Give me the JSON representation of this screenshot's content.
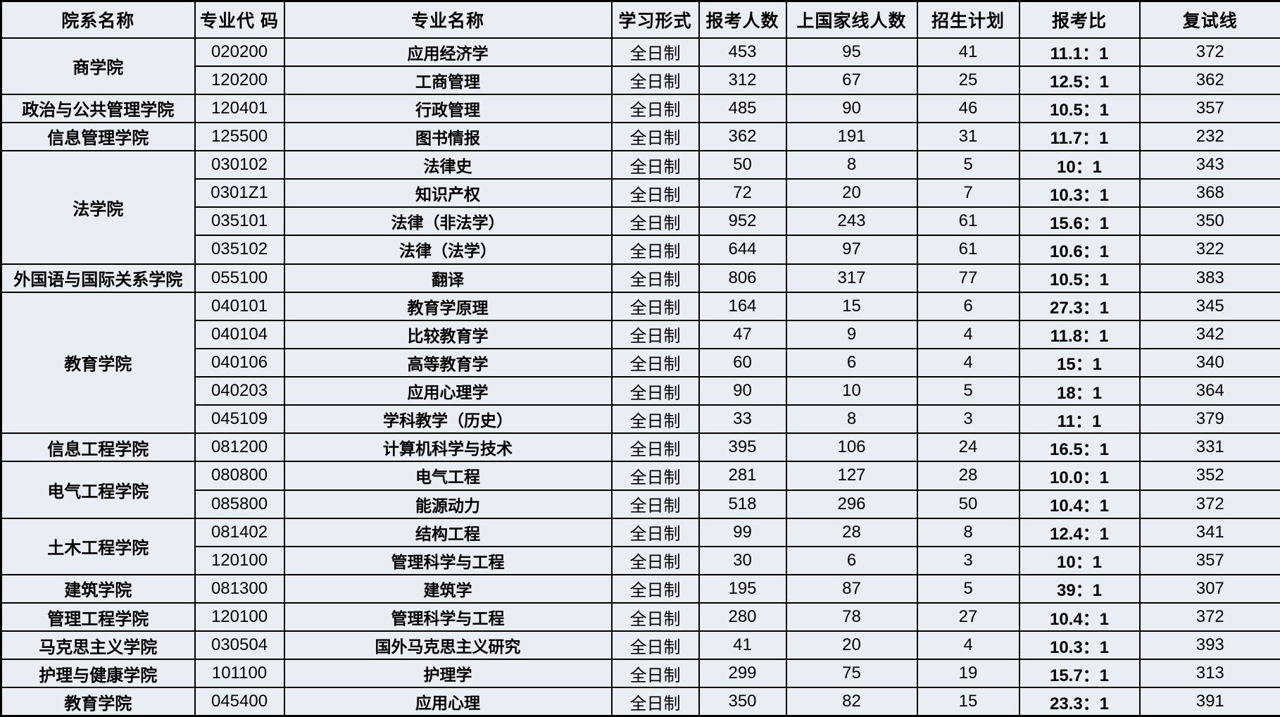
{
  "table": {
    "headers": [
      "院系名称",
      "专业代 码",
      "专业名称",
      "学习形式",
      "报考人数",
      "上国家线人数",
      "招生计划",
      "报考比",
      "复试线"
    ],
    "colors": {
      "cell_background": "#e9edf4",
      "border": "#000000",
      "text": "#000000"
    },
    "groups": [
      {
        "name": "商学院",
        "rows": [
          [
            "020200",
            "应用经济学",
            "全日制",
            "453",
            "95",
            "41",
            "11.1：1",
            "372"
          ],
          [
            "120200",
            "工商管理",
            "全日制",
            "312",
            "67",
            "25",
            "12.5：1",
            "362"
          ]
        ]
      },
      {
        "name": "政治与公共管理学院",
        "rows": [
          [
            "120401",
            "行政管理",
            "全日制",
            "485",
            "90",
            "46",
            "10.5：1",
            "357"
          ]
        ]
      },
      {
        "name": "信息管理学院",
        "rows": [
          [
            "125500",
            "图书情报",
            "全日制",
            "362",
            "191",
            "31",
            "11.7：1",
            "232"
          ]
        ]
      },
      {
        "name": "法学院",
        "rows": [
          [
            "030102",
            "法律史",
            "全日制",
            "50",
            "8",
            "5",
            "10：1",
            "343"
          ],
          [
            "0301Z1",
            "知识产权",
            "全日制",
            "72",
            "20",
            "7",
            "10.3：1",
            "368"
          ],
          [
            "035101",
            "法律（非法学）",
            "全日制",
            "952",
            "243",
            "61",
            "15.6：1",
            "350"
          ],
          [
            "035102",
            "法律（法学）",
            "全日制",
            "644",
            "97",
            "61",
            "10.6：1",
            "322"
          ]
        ]
      },
      {
        "name": "外国语与国际关系学院",
        "rows": [
          [
            "055100",
            "翻译",
            "全日制",
            "806",
            "317",
            "77",
            "10.5：1",
            "383"
          ]
        ]
      },
      {
        "name": "教育学院",
        "rows": [
          [
            "040101",
            "教育学原理",
            "全日制",
            "164",
            "15",
            "6",
            "27.3：1",
            "345"
          ],
          [
            "040104",
            "比较教育学",
            "全日制",
            "47",
            "9",
            "4",
            "11.8：1",
            "342"
          ],
          [
            "040106",
            "高等教育学",
            "全日制",
            "60",
            "6",
            "4",
            "15：1",
            "340"
          ],
          [
            "040203",
            "应用心理学",
            "全日制",
            "90",
            "10",
            "5",
            "18：1",
            "364"
          ],
          [
            "045109",
            "学科教学（历史）",
            "全日制",
            "33",
            "8",
            "3",
            "11：1",
            "379"
          ]
        ]
      },
      {
        "name": "信息工程学院",
        "rows": [
          [
            "081200",
            "计算机科学与技术",
            "全日制",
            "395",
            "106",
            "24",
            "16.5：1",
            "331"
          ]
        ]
      },
      {
        "name": "电气工程学院",
        "rows": [
          [
            "080800",
            "电气工程",
            "全日制",
            "281",
            "127",
            "28",
            "10.0：1",
            "352"
          ],
          [
            "085800",
            "能源动力",
            "全日制",
            "518",
            "296",
            "50",
            "10.4：1",
            "372"
          ]
        ]
      },
      {
        "name": "土木工程学院",
        "rows": [
          [
            "081402",
            "结构工程",
            "全日制",
            "99",
            "28",
            "8",
            "12.4：1",
            "341"
          ],
          [
            "120100",
            "管理科学与工程",
            "全日制",
            "30",
            "6",
            "3",
            "10：1",
            "357"
          ]
        ]
      },
      {
        "name": "建筑学院",
        "rows": [
          [
            "081300",
            "建筑学",
            "全日制",
            "195",
            "87",
            "5",
            "39：1",
            "307"
          ]
        ]
      },
      {
        "name": "管理工程学院",
        "rows": [
          [
            "120100",
            "管理科学与工程",
            "全日制",
            "280",
            "78",
            "27",
            "10.4：1",
            "372"
          ]
        ]
      },
      {
        "name": "马克思主义学院",
        "rows": [
          [
            "030504",
            "国外马克思主义研究",
            "全日制",
            "41",
            "20",
            "4",
            "10.3：1",
            "393"
          ]
        ]
      },
      {
        "name": "护理与健康学院",
        "rows": [
          [
            "101100",
            "护理学",
            "全日制",
            "299",
            "75",
            "19",
            "15.7：1",
            "313"
          ]
        ]
      },
      {
        "name": "教育学院",
        "rows": [
          [
            "045400",
            "应用心理",
            "全日制",
            "350",
            "82",
            "15",
            "23.3：1",
            "391"
          ]
        ]
      }
    ]
  }
}
